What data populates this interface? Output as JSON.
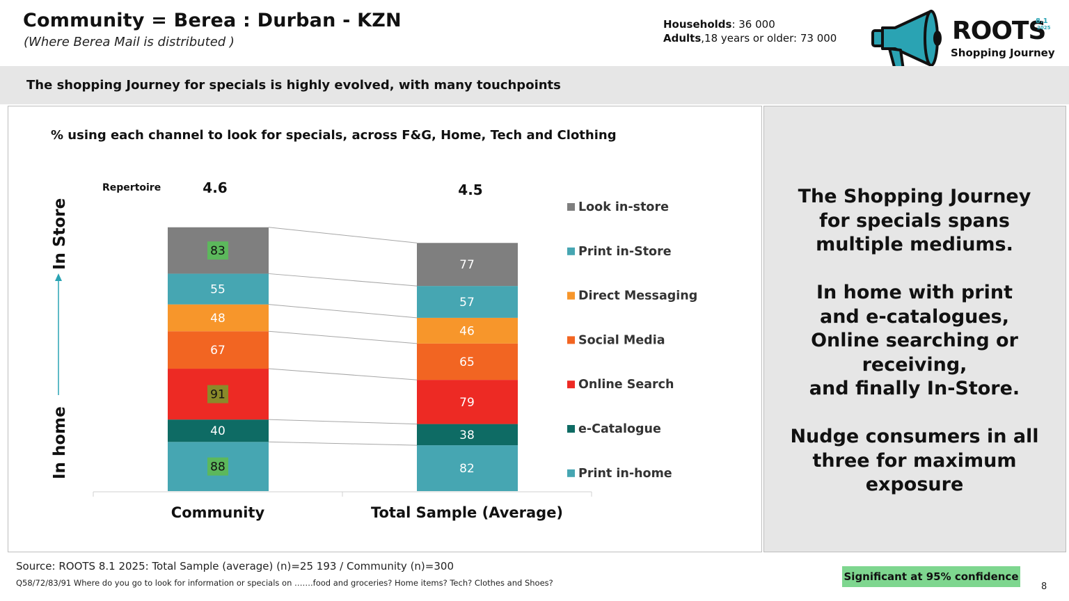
{
  "header": {
    "title": "Community = Berea : Durban - KZN",
    "subtitle": "(Where Berea Mail is distributed )",
    "households_label": "Households",
    "households_value": ": 36 000",
    "adults_label": "Adults",
    "adults_value": ",18 years or older: 73 000"
  },
  "logo": {
    "word": "ROOTS",
    "version": "8.1",
    "year": "2025",
    "subtitle": "Shopping Journey"
  },
  "banner": {
    "text": "The shopping Journey for specials is highly evolved, with many touchpoints"
  },
  "colors": {
    "look_in_store": "#7f7f7f",
    "print_in_store": "#46a6b2",
    "direct_messaging": "#f7962b",
    "social_media": "#f26522",
    "online_search": "#ed2a24",
    "e_catalogue": "#0e6b64",
    "print_in_home": "#46a6b2",
    "sig_high": "#5cb85c",
    "sig_low": "#8a8a2a",
    "significant_badge": "#7ed68f"
  },
  "chart_data": {
    "type": "bar",
    "stacked": true,
    "title": "% using each channel to look for specials, across F&G, Home, Tech and Clothing",
    "categories": [
      "Community",
      "Total Sample (Average)"
    ],
    "repertoire_label": "Repertoire",
    "repertoire": [
      "4.6",
      "4.5"
    ],
    "yaxis_top_label": "In Store",
    "yaxis_bottom_label": "In home",
    "series": [
      {
        "name": "Print in-home",
        "color": "#46a6b2",
        "values": [
          88,
          82
        ],
        "significant": [
          "high",
          null
        ]
      },
      {
        "name": "e-Catalogue",
        "color": "#0e6b64",
        "values": [
          40,
          38
        ],
        "significant": [
          null,
          null
        ]
      },
      {
        "name": "Online Search",
        "color": "#ed2a24",
        "values": [
          91,
          79
        ],
        "significant": [
          "low",
          null
        ]
      },
      {
        "name": "Social Media",
        "color": "#f26522",
        "values": [
          67,
          65
        ],
        "significant": [
          null,
          null
        ]
      },
      {
        "name": "Direct Messaging",
        "color": "#f7962b",
        "values": [
          48,
          46
        ],
        "significant": [
          null,
          null
        ]
      },
      {
        "name": "Print in-Store",
        "color": "#46a6b2",
        "values": [
          55,
          57
        ],
        "significant": [
          null,
          null
        ]
      },
      {
        "name": "Look in-store",
        "color": "#7f7f7f",
        "values": [
          83,
          77
        ],
        "significant": [
          "high",
          null
        ]
      }
    ],
    "legend_order": [
      "Look in-store",
      "Print in-Store",
      "Direct Messaging",
      "Social Media",
      "Online Search",
      "e-Catalogue",
      "Print in-home"
    ],
    "legend_position": "right"
  },
  "insight": {
    "para1": "The Shopping Journey for specials spans multiple mediums.",
    "para2_line1": "In home with print and e-catalogues,",
    "para2_line2": "Online searching or receiving,",
    "para2_line3": "and finally In-Store.",
    "para3": "Nudge consumers in all three for maximum exposure"
  },
  "footer": {
    "source": "Source: ROOTS 8.1 2025:  Total Sample (average) (n)=25 193 / Community (n)=300",
    "question": "Q58/72/83/91 Where do you go to look for information or specials on …….food and groceries? Home items? Tech? Clothes and Shoes?",
    "significant_label": "Significant at 95% confidence",
    "page_number": "8"
  }
}
